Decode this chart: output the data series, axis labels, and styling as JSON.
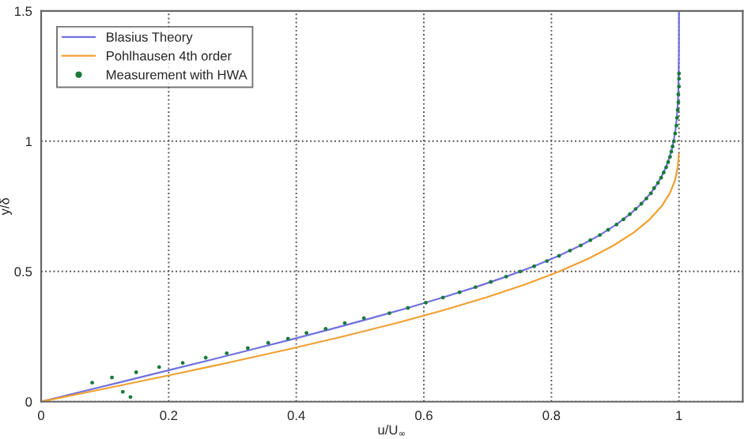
{
  "chart_data": {
    "type": "line",
    "xlabel": "u/U$_{∞}$",
    "ylabel": "y/δ",
    "xlim": [
      0,
      1.1
    ],
    "ylim": [
      0,
      1.5
    ],
    "xticks": [
      0,
      0.2,
      0.4,
      0.6,
      0.8,
      1
    ],
    "yticks": [
      0,
      0.5,
      1,
      1.5
    ],
    "grid": true,
    "legend": "top left",
    "series": [
      {
        "name": "Blasius Theory",
        "color": "#7070e0",
        "line_style": "solid",
        "x": [
          0,
          0.0664,
          0.1328,
          0.1989,
          0.2647,
          0.3298,
          0.3938,
          0.4563,
          0.5168,
          0.5748,
          0.6298,
          0.6813,
          0.729,
          0.7725,
          0.8115,
          0.846,
          0.8761,
          0.9018,
          0.9233,
          0.9411,
          0.9555,
          0.967,
          0.9759,
          0.9827,
          0.9878,
          0.9916,
          0.9943,
          0.9962,
          0.9975,
          0.9984,
          0.999,
          0.9996,
          0.9999,
          1,
          1
        ],
        "values": [
          0,
          0.04,
          0.08,
          0.12,
          0.16,
          0.2,
          0.24,
          0.28,
          0.32,
          0.36,
          0.4,
          0.44,
          0.48,
          0.52,
          0.56,
          0.6,
          0.64,
          0.68,
          0.72,
          0.76,
          0.8,
          0.84,
          0.88,
          0.92,
          0.96,
          1.0,
          1.04,
          1.08,
          1.12,
          1.16,
          1.2,
          1.28,
          1.36,
          1.44,
          1.5
        ]
      },
      {
        "name": "Pohlhausen 4th order",
        "color": "#f0a030",
        "line_style": "solid",
        "x": [
          0,
          0.0998,
          0.1981,
          0.2938,
          0.3856,
          0.4727,
          0.5541,
          0.6292,
          0.6976,
          0.7588,
          0.8125,
          0.8588,
          0.8976,
          0.9293,
          0.9541,
          0.9727,
          0.9856,
          0.9938,
          0.9981,
          0.9998
        ],
        "values": [
          0,
          0.05,
          0.1,
          0.15,
          0.2,
          0.25,
          0.3,
          0.35,
          0.4,
          0.45,
          0.5,
          0.55,
          0.6,
          0.65,
          0.7,
          0.75,
          0.8,
          0.85,
          0.9,
          0.95
        ]
      },
      {
        "name": "Measurement with HWA",
        "color": "#1a7a3a",
        "type": "scatter",
        "marker": "circle",
        "x": [
          0.08,
          0.111,
          0.128,
          0.14,
          0.149,
          0.185,
          0.222,
          0.258,
          0.291,
          0.324,
          0.356,
          0.387,
          0.416,
          0.446,
          0.476,
          0.506,
          0.546,
          0.575,
          0.603,
          0.63,
          0.656,
          0.681,
          0.705,
          0.729,
          0.751,
          0.773,
          0.793,
          0.812,
          0.829,
          0.846,
          0.861,
          0.876,
          0.889,
          0.902,
          0.913,
          0.923,
          0.932,
          0.941,
          0.949,
          0.956,
          0.961,
          0.967,
          0.972,
          0.976,
          0.98,
          0.983,
          0.986,
          0.988,
          0.99,
          0.992,
          0.994,
          0.996,
          0.997,
          0.998,
          0.999,
          0.999,
          1.0,
          1.0,
          1.0
        ],
        "values": [
          0.073,
          0.093,
          0.038,
          0.018,
          0.113,
          0.133,
          0.149,
          0.169,
          0.186,
          0.206,
          0.226,
          0.242,
          0.264,
          0.28,
          0.302,
          0.321,
          0.34,
          0.36,
          0.38,
          0.4,
          0.42,
          0.44,
          0.46,
          0.48,
          0.5,
          0.52,
          0.54,
          0.56,
          0.58,
          0.6,
          0.62,
          0.64,
          0.66,
          0.68,
          0.7,
          0.72,
          0.74,
          0.76,
          0.78,
          0.8,
          0.82,
          0.84,
          0.86,
          0.88,
          0.9,
          0.92,
          0.94,
          0.96,
          0.98,
          1.0,
          1.03,
          1.06,
          1.09,
          1.12,
          1.15,
          1.18,
          1.21,
          1.24,
          1.26
        ]
      }
    ]
  }
}
